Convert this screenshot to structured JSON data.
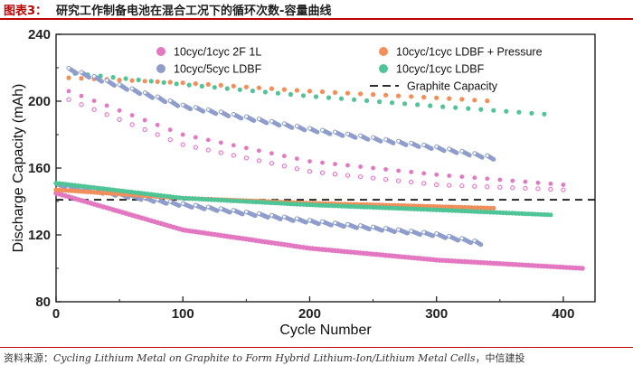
{
  "header": {
    "figure_label": "图表3：",
    "caption": "研究工作制备电池在混合工况下的循环次数-容量曲线"
  },
  "source": {
    "prefix": "资料来源：",
    "citation": "Cycling Lithium Metal on Graphite to Form Hybrid Lithium-Ion/Lithium Metal Cells",
    "suffix": "，中信建投"
  },
  "colors": {
    "pink": "#e377c2",
    "blue": "#8e9dcc",
    "orange": "#f28e5a",
    "green": "#4fc497",
    "dash": "#111111",
    "axis": "#222222"
  },
  "chart_data": {
    "type": "scatter",
    "xlabel": "Cycle Number",
    "ylabel": "Discharge Capacity (mAh)",
    "xlim": [
      0,
      425
    ],
    "ylim": [
      80,
      240
    ],
    "xticks": [
      "0",
      "100",
      "200",
      "300",
      "400"
    ],
    "yticks": [
      "80",
      "120",
      "160",
      "200",
      "240"
    ],
    "reference_line": {
      "name": "Graphite Capacity",
      "y": 141,
      "style": "dashed"
    },
    "series": [
      {
        "name": "10cyc/1cyc  2F 1L",
        "color": "pink",
        "kind": "filled",
        "legend": "top-left",
        "upper_branch": {
          "x": [
            10,
            100,
            200,
            300,
            400
          ],
          "y": [
            206,
            180,
            164,
            156,
            150
          ]
        },
        "lower_branch": {
          "x": [
            10,
            100,
            200,
            300,
            400
          ],
          "y": [
            201,
            174,
            158,
            150,
            147
          ]
        },
        "bottom_band": {
          "x": [
            0,
            100,
            200,
            300,
            415
          ],
          "y": [
            145,
            123,
            112,
            105,
            100
          ]
        }
      },
      {
        "name": "10cyc/5cyc LDBF",
        "color": "blue",
        "kind": "filled",
        "legend": "top-left",
        "upper_band": {
          "x": [
            10,
            100,
            200,
            300,
            345
          ],
          "y": [
            219,
            197,
            183,
            172,
            166
          ]
        },
        "bottom_band": {
          "x": [
            0,
            100,
            200,
            300,
            335
          ],
          "y": [
            150,
            138,
            128,
            120,
            115
          ]
        }
      },
      {
        "name": "10cyc/1cyc LDBF + Pressure",
        "color": "orange",
        "kind": "filled",
        "legend": "top-right",
        "upper_band": {
          "x": [
            10,
            100,
            200,
            300,
            345
          ],
          "y": [
            214,
            211,
            206,
            202,
            200
          ]
        },
        "bottom_band": {
          "x": [
            0,
            100,
            200,
            300,
            345
          ],
          "y": [
            147,
            142,
            139,
            137,
            136
          ]
        }
      },
      {
        "name": "10cyc/1cyc LDBF",
        "color": "green",
        "kind": "filled",
        "legend": "top-right",
        "upper_band": {
          "x": [
            10,
            100,
            200,
            300,
            390
          ],
          "y": [
            217,
            210,
            203,
            197,
            192
          ]
        },
        "bottom_band": {
          "x": [
            0,
            100,
            200,
            300,
            390
          ],
          "y": [
            151,
            142,
            138,
            135,
            132
          ]
        }
      }
    ]
  }
}
